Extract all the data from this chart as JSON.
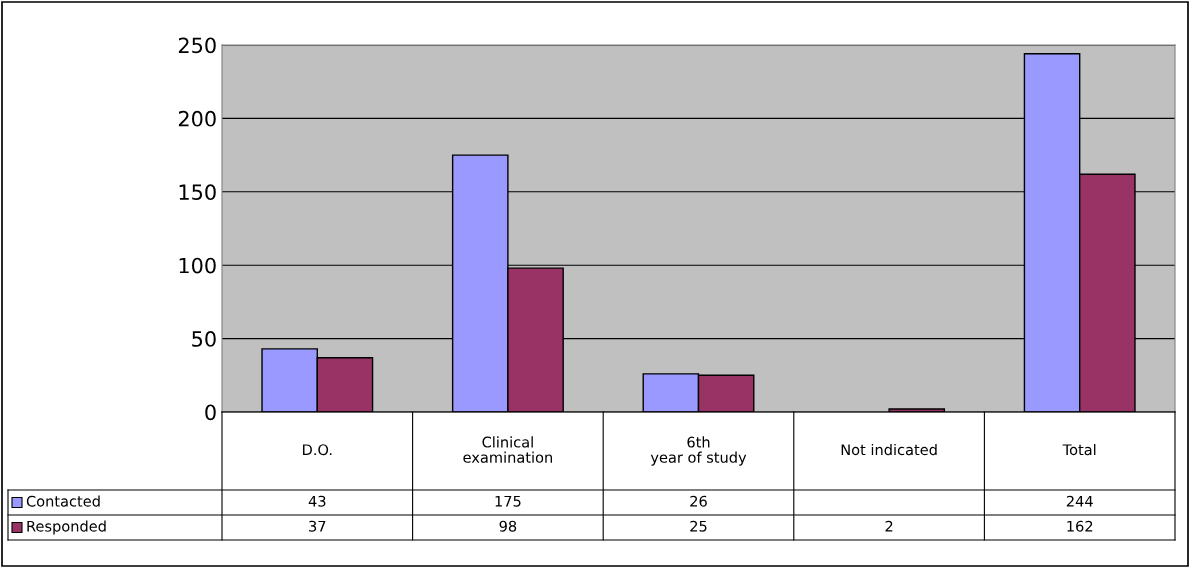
{
  "chart_data": {
    "type": "bar",
    "categories": [
      "D.O.",
      "Clinical\nexamination",
      "6th\nyear of study",
      "Not indicated",
      "Total"
    ],
    "series": [
      {
        "name": "Contacted",
        "color": "#9999ff",
        "values": [
          43,
          175,
          26,
          null,
          244
        ]
      },
      {
        "name": "Responded",
        "color": "#993366",
        "values": [
          37,
          98,
          25,
          2,
          162
        ]
      }
    ],
    "ylim": [
      0,
      250
    ],
    "yticks": [
      0,
      50,
      100,
      150,
      200,
      250
    ],
    "grid": "y",
    "legend": "bottom",
    "data_labels": true
  }
}
